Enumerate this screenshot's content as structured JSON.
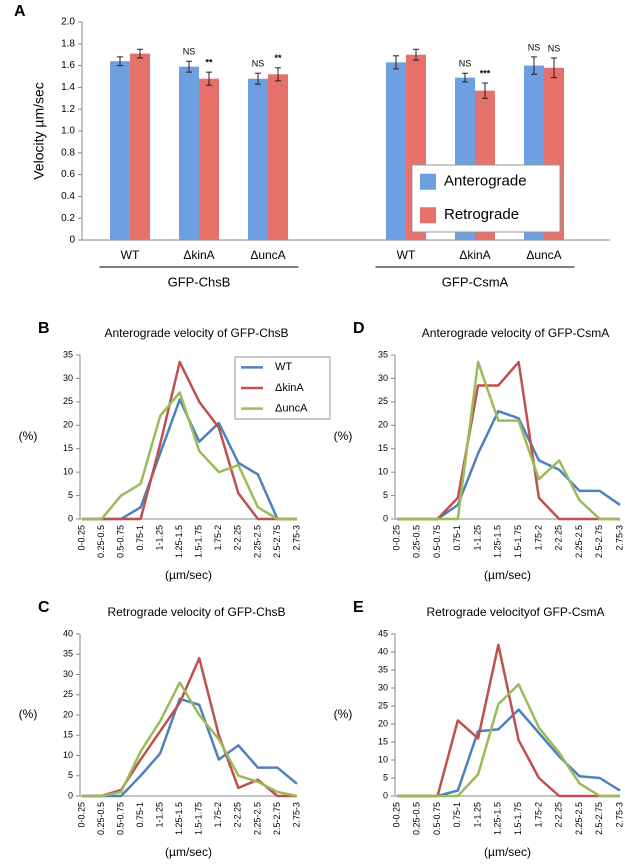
{
  "chart_data": [
    {
      "type": "bar",
      "panel": "A",
      "ylabel": "Velocity µm/sec",
      "groups": [
        "GFP-ChsB",
        "GFP-CsmA"
      ],
      "categories": [
        "WT",
        "ΔkinA",
        "ΔuncA",
        "WT",
        "ΔkinA",
        "ΔuncA"
      ],
      "series": [
        {
          "name": "Anterograde",
          "color": "#6e9fe0",
          "values": [
            1.64,
            1.59,
            1.48,
            1.63,
            1.49,
            1.6
          ],
          "errors": [
            0.04,
            0.05,
            0.05,
            0.06,
            0.04,
            0.08
          ],
          "annotations": [
            null,
            "NS",
            "NS",
            null,
            "NS",
            "NS"
          ]
        },
        {
          "name": "Retrograde",
          "color": "#e6706a",
          "values": [
            1.71,
            1.48,
            1.52,
            1.7,
            1.37,
            1.58
          ],
          "errors": [
            0.04,
            0.06,
            0.06,
            0.05,
            0.07,
            0.09
          ],
          "annotations": [
            null,
            "**",
            "**",
            null,
            "***",
            "NS"
          ]
        }
      ],
      "ylim": [
        0,
        2
      ],
      "yticks": [
        0,
        0.2,
        0.4,
        0.6,
        0.8,
        {
          "value": 1,
          "label": "1.0"
        },
        1.2,
        1.4,
        1.6,
        1.8,
        {
          "value": 2,
          "label": "2.0"
        }
      ],
      "legend": "lower right"
    },
    {
      "type": "line",
      "panel": "B",
      "title": "Anterograde velocity of GFP-ChsB",
      "xlabel": "(µm/sec)",
      "ylabel": "(%)",
      "categories": [
        "0-0.25",
        "0.25-0.5",
        "0.5-0.75",
        "0.75-1",
        "1-1.25",
        "1.25-1.5",
        "1.5-1.75",
        "1.75-2",
        "2-2.25",
        "2.25-2.5",
        "2.5-2.75",
        "2.75-3"
      ],
      "series": [
        {
          "name": "WT",
          "color": "#4f81bd",
          "values": [
            0,
            0,
            0,
            2.5,
            14,
            25.5,
            16.5,
            20.5,
            12,
            9.5,
            0,
            0
          ]
        },
        {
          "name": "ΔkinA",
          "color": "#c0504d",
          "values": [
            0,
            0,
            0,
            0,
            16,
            33.5,
            25,
            19.5,
            5.5,
            0,
            0,
            0
          ]
        },
        {
          "name": "ΔuncA",
          "color": "#9bbb59",
          "values": [
            0,
            0,
            5,
            7.5,
            22,
            27,
            14.5,
            10,
            11.5,
            2.5,
            0,
            0
          ]
        }
      ],
      "ylim": [
        0,
        35
      ],
      "yticks": [
        0,
        5,
        10,
        15,
        20,
        25,
        30,
        35
      ],
      "legend": "upper right"
    },
    {
      "type": "line",
      "panel": "C",
      "title": "Retrograde velocity of GFP-ChsB",
      "xlabel": "(µm/sec)",
      "ylabel": "(%)",
      "categories": [
        "0-0.25",
        "0.25-0.5",
        "0.5-0.75",
        "0.75-1",
        "1-1.25",
        "1.25-1.5",
        "1.5-1.75",
        "1.75-2",
        "2-2.25",
        "2.25-2.5",
        "2.5-2.75",
        "2.75-3"
      ],
      "series": [
        {
          "color": "#4f81bd",
          "values": [
            0,
            0,
            0,
            5,
            10.5,
            24,
            22.5,
            9,
            12.5,
            7,
            7,
            3
          ]
        },
        {
          "color": "#c0504d",
          "values": [
            0,
            0,
            1.5,
            9,
            16,
            23,
            34,
            15,
            2,
            4,
            0,
            0
          ]
        },
        {
          "color": "#9bbb59",
          "values": [
            0,
            0,
            1,
            11,
            18.5,
            28,
            20,
            14,
            5,
            3.5,
            1,
            0
          ]
        }
      ],
      "ylim": [
        0,
        40
      ],
      "yticks": [
        0,
        5,
        10,
        15,
        20,
        25,
        30,
        35,
        40
      ]
    },
    {
      "type": "line",
      "panel": "D",
      "title": "Anterograde velocity of GFP-CsmA",
      "xlabel": "(µm/sec)",
      "ylabel": "(%)",
      "categories": [
        "0-0.25",
        "0.25-0.5",
        "0.5-0.75",
        "0.75-1",
        "1-1.25",
        "1.25-1.5",
        "1.5-1.75",
        "1.75-2",
        "2-2.25",
        "2.25-2.5",
        "2.5-2.75",
        "2.75-3"
      ],
      "series": [
        {
          "color": "#4f81bd",
          "values": [
            0,
            0,
            0,
            3,
            14,
            23,
            21.5,
            12.5,
            10.5,
            6,
            6,
            3
          ]
        },
        {
          "color": "#c0504d",
          "values": [
            0,
            0,
            0,
            4.5,
            28.5,
            28.5,
            33.5,
            4.5,
            0,
            0,
            0,
            0
          ]
        },
        {
          "color": "#9bbb59",
          "values": [
            0,
            0,
            0,
            0,
            33.5,
            21,
            21,
            8.5,
            12.5,
            4,
            0,
            0
          ]
        }
      ],
      "ylim": [
        0,
        35
      ],
      "yticks": [
        0,
        5,
        10,
        15,
        20,
        25,
        30,
        35
      ]
    },
    {
      "type": "line",
      "panel": "E",
      "title": "Retrograde velocityof GFP-CsmA",
      "xlabel": "(µm/sec)",
      "ylabel": "(%)",
      "categories": [
        "0-0.25",
        "0.25-0.5",
        "0.5-0.75",
        "0.75-1",
        "1-1.25",
        "1.25-1.5",
        "1.5-1.75",
        "1.75-2",
        "2-2.25",
        "2.25-2.5",
        "2.5-2.75",
        "2.75-3"
      ],
      "series": [
        {
          "color": "#4f81bd",
          "values": [
            0,
            0,
            0,
            1.5,
            18,
            18.5,
            24,
            17.5,
            11,
            5.5,
            5,
            1.5
          ]
        },
        {
          "color": "#c0504d",
          "values": [
            0,
            0,
            0,
            21,
            16,
            42,
            15.5,
            5,
            0,
            0,
            0,
            0
          ]
        },
        {
          "color": "#9bbb59",
          "values": [
            0,
            0,
            0,
            0,
            6,
            25.5,
            31,
            19,
            12,
            3.5,
            0,
            0
          ]
        }
      ],
      "ylim": [
        0,
        45
      ],
      "yticks": [
        0,
        5,
        10,
        15,
        20,
        25,
        30,
        35,
        40,
        45
      ]
    }
  ]
}
